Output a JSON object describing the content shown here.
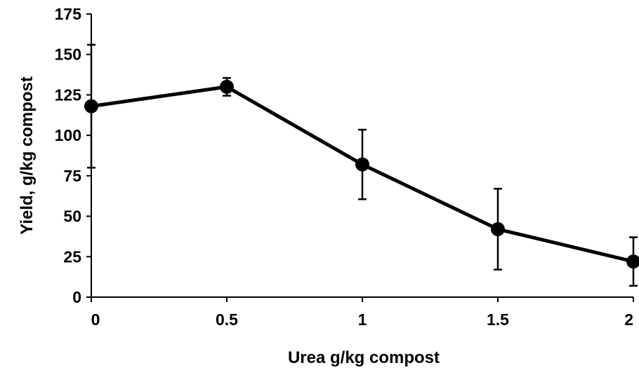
{
  "chart_data": {
    "type": "line",
    "title": "",
    "xlabel": "Urea g/kg compost",
    "ylabel": "Yield, g/kg compost",
    "xlim": [
      0,
      2
    ],
    "ylim": [
      0,
      175
    ],
    "x_ticks": [
      "0",
      "0.5",
      "1",
      "1.5",
      "2"
    ],
    "y_ticks": [
      "0",
      "25",
      "50",
      "75",
      "100",
      "125",
      "150",
      "175"
    ],
    "grid": false,
    "legend": "none",
    "series": [
      {
        "x": [
          0,
          0.5,
          1,
          1.5,
          2
        ],
        "y": [
          118,
          130,
          82,
          42,
          22
        ],
        "error": [
          38,
          5.5,
          21.5,
          25,
          15
        ],
        "color": "#000000",
        "marker": "circle"
      }
    ]
  }
}
